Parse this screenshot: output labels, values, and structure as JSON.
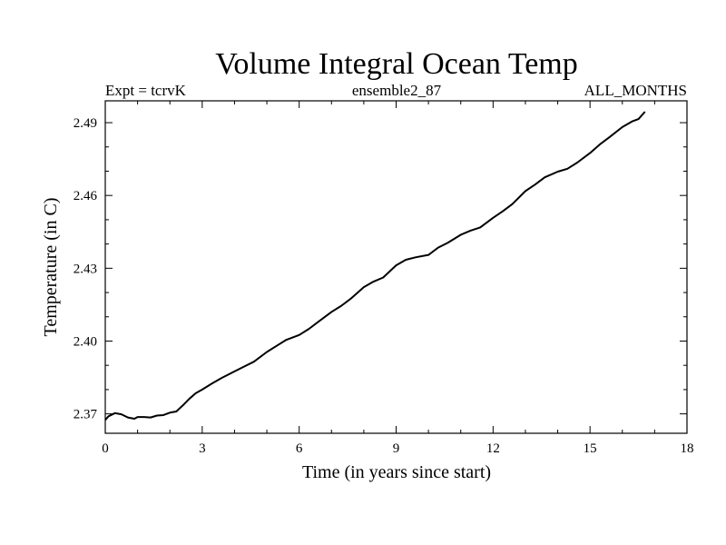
{
  "chart_data": {
    "type": "line",
    "title": "Volume Integral Ocean Temp",
    "subtitle_left": "Expt = tcrvK",
    "subtitle_center": "ensemble2_87",
    "subtitle_right": "ALL_MONTHS",
    "xlabel": "Time (in years since start)",
    "ylabel": "Temperature (in C)",
    "xlim": [
      0,
      18
    ],
    "ylim": [
      2.362,
      2.499
    ],
    "x_ticks": [
      0,
      3,
      6,
      9,
      12,
      15,
      18
    ],
    "x_tick_labels": [
      "0",
      "3",
      "6",
      "9",
      "12",
      "15",
      "18"
    ],
    "y_ticks": [
      2.37,
      2.4,
      2.43,
      2.46,
      2.49
    ],
    "y_tick_labels": [
      "2.37",
      "2.40",
      "2.43",
      "2.46",
      "2.49"
    ],
    "line_color": "#000000",
    "series": [
      {
        "name": "Volume Integral Ocean Temp",
        "x": [
          0,
          0.1,
          0.3,
          0.5,
          0.7,
          0.9,
          1.0,
          1.2,
          1.4,
          1.6,
          1.8,
          2.0,
          2.2,
          2.4,
          2.6,
          2.8,
          3.0,
          3.3,
          3.6,
          4.0,
          4.3,
          4.6,
          5.0,
          5.3,
          5.6,
          6.0,
          6.3,
          6.6,
          7.0,
          7.3,
          7.6,
          8.0,
          8.3,
          8.6,
          9.0,
          9.3,
          9.6,
          10.0,
          10.3,
          10.6,
          11.0,
          11.3,
          11.6,
          12.0,
          12.3,
          12.6,
          13.0,
          13.3,
          13.6,
          14.0,
          14.3,
          14.6,
          15.0,
          15.3,
          15.6,
          16.0,
          16.3,
          16.5,
          16.7
        ],
        "y": [
          2.3675,
          2.369,
          2.3703,
          2.3698,
          2.3685,
          2.368,
          2.3687,
          2.3687,
          2.3685,
          2.3693,
          2.3695,
          2.3705,
          2.371,
          2.3735,
          2.3762,
          2.3785,
          2.38,
          2.3825,
          2.3848,
          2.3875,
          2.3895,
          2.3915,
          2.3955,
          2.398,
          2.4005,
          2.4025,
          2.405,
          2.408,
          2.412,
          2.4145,
          2.4175,
          2.4222,
          2.4245,
          2.4262,
          2.4312,
          2.4335,
          2.4345,
          2.4355,
          2.4385,
          2.4405,
          2.4438,
          2.4455,
          2.4468,
          2.4508,
          2.4535,
          2.4565,
          2.4618,
          2.4645,
          2.4675,
          2.4698,
          2.471,
          2.4735,
          2.4775,
          2.481,
          2.484,
          2.4882,
          2.4905,
          2.4915,
          2.4945
        ]
      }
    ]
  }
}
